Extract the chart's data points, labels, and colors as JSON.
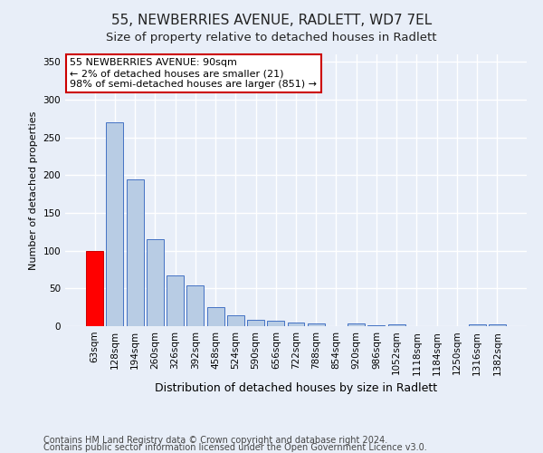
{
  "title1": "55, NEWBERRIES AVENUE, RADLETT, WD7 7EL",
  "title2": "Size of property relative to detached houses in Radlett",
  "xlabel": "Distribution of detached houses by size in Radlett",
  "ylabel": "Number of detached properties",
  "categories": [
    "63sqm",
    "128sqm",
    "194sqm",
    "260sqm",
    "326sqm",
    "392sqm",
    "458sqm",
    "524sqm",
    "590sqm",
    "656sqm",
    "722sqm",
    "788sqm",
    "854sqm",
    "920sqm",
    "986sqm",
    "1052sqm",
    "1118sqm",
    "1184sqm",
    "1250sqm",
    "1316sqm",
    "1382sqm"
  ],
  "values": [
    100,
    270,
    195,
    115,
    67,
    54,
    25,
    15,
    9,
    7,
    5,
    4,
    0,
    4,
    1,
    3,
    0,
    0,
    0,
    3,
    2
  ],
  "bar_color": "#b8cce4",
  "bar_edge_color": "#4472c4",
  "highlight_bar_index": 0,
  "highlight_color": "#ff0000",
  "highlight_edge_color": "#cc0000",
  "annotation_text": "55 NEWBERRIES AVENUE: 90sqm\n← 2% of detached houses are smaller (21)\n98% of semi-detached houses are larger (851) →",
  "annotation_box_color": "#ffffff",
  "annotation_box_edge": "#cc0000",
  "ylim": [
    0,
    360
  ],
  "yticks": [
    0,
    50,
    100,
    150,
    200,
    250,
    300,
    350
  ],
  "footer1": "Contains HM Land Registry data © Crown copyright and database right 2024.",
  "footer2": "Contains public sector information licensed under the Open Government Licence v3.0.",
  "bg_color": "#e8eef8",
  "plot_bg_color": "#e8eef8",
  "grid_color": "#ffffff",
  "title1_fontsize": 11,
  "title2_fontsize": 9.5,
  "xlabel_fontsize": 9,
  "ylabel_fontsize": 8,
  "tick_fontsize": 7.5,
  "footer_fontsize": 7,
  "annotation_fontsize": 8
}
